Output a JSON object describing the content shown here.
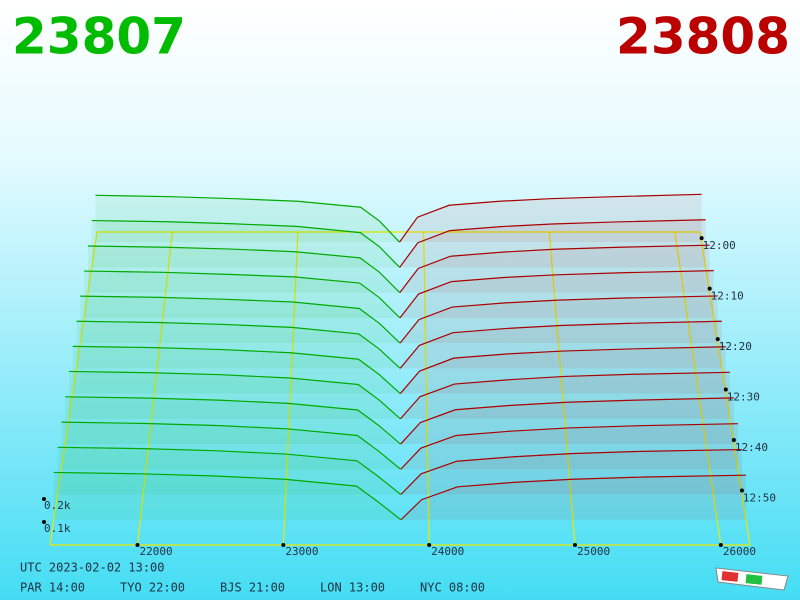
{
  "header": {
    "bid": "23807",
    "ask": "23808"
  },
  "chart_data": {
    "type": "depth3d",
    "bid_color": "#00aa00",
    "ask_color": "#aa0000",
    "grid_color": "#e8e800",
    "xlim": [
      21400,
      26200
    ],
    "xticks": [
      22000,
      23000,
      24000,
      25000,
      26000
    ],
    "tlim": [
      718,
      780
    ],
    "tticks": [
      {
        "value": 720,
        "label": "12:00"
      },
      {
        "value": 730,
        "label": "12:10"
      },
      {
        "value": 740,
        "label": "12:20"
      },
      {
        "value": 750,
        "label": "12:30"
      },
      {
        "value": 760,
        "label": "12:40"
      },
      {
        "value": 770,
        "label": "12:50"
      }
    ],
    "zticks": [
      {
        "value": 100,
        "label": "0.1k"
      },
      {
        "value": 200,
        "label": "0.2k"
      }
    ],
    "bid_prices": [
      21400,
      22000,
      22500,
      23000,
      23500,
      23650,
      23807
    ],
    "ask_prices": [
      23808,
      23950,
      24200,
      24600,
      25000,
      25500,
      26200
    ],
    "snapshots": [
      {
        "time": 720,
        "bids": [
          235,
          228,
          218,
          205,
          175,
          105,
          0
        ],
        "asks": [
          0,
          125,
          185,
          205,
          218,
          228,
          240
        ]
      },
      {
        "time": 725,
        "bids": [
          232,
          226,
          216,
          203,
          172,
          102,
          0
        ],
        "asks": [
          0,
          122,
          182,
          202,
          215,
          225,
          236
        ]
      },
      {
        "time": 730,
        "bids": [
          228,
          222,
          213,
          200,
          170,
          100,
          0
        ],
        "asks": [
          0,
          118,
          178,
          198,
          212,
          222,
          232
        ]
      },
      {
        "time": 735,
        "bids": [
          226,
          220,
          210,
          198,
          168,
          98,
          0
        ],
        "asks": [
          0,
          115,
          175,
          195,
          208,
          218,
          228
        ]
      },
      {
        "time": 740,
        "bids": [
          224,
          218,
          209,
          196,
          165,
          95,
          0
        ],
        "asks": [
          0,
          112,
          172,
          192,
          205,
          215,
          225
        ]
      },
      {
        "time": 745,
        "bids": [
          222,
          216,
          207,
          193,
          162,
          92,
          0
        ],
        "asks": [
          0,
          108,
          168,
          188,
          202,
          212,
          222
        ]
      },
      {
        "time": 750,
        "bids": [
          220,
          214,
          205,
          190,
          160,
          90,
          0
        ],
        "asks": [
          0,
          105,
          165,
          185,
          198,
          208,
          218
        ]
      },
      {
        "time": 755,
        "bids": [
          218,
          212,
          203,
          188,
          158,
          88,
          0
        ],
        "asks": [
          0,
          102,
          160,
          180,
          195,
          205,
          214
        ]
      },
      {
        "time": 760,
        "bids": [
          215,
          209,
          200,
          185,
          155,
          85,
          0
        ],
        "asks": [
          0,
          98,
          156,
          176,
          190,
          200,
          210
        ]
      },
      {
        "time": 765,
        "bids": [
          212,
          206,
          197,
          182,
          152,
          82,
          0
        ],
        "asks": [
          0,
          95,
          152,
          172,
          186,
          196,
          205
        ]
      },
      {
        "time": 770,
        "bids": [
          210,
          204,
          195,
          180,
          150,
          80,
          0
        ],
        "asks": [
          0,
          92,
          148,
          168,
          182,
          192,
          200
        ]
      },
      {
        "time": 775,
        "bids": [
          208,
          202,
          193,
          178,
          148,
          78,
          0
        ],
        "asks": [
          0,
          88,
          145,
          165,
          178,
          188,
          196
        ]
      }
    ]
  },
  "footer": {
    "utc": "UTC 2023-02-02 13:00",
    "cities": [
      "PAR 14:00",
      "TYO 22:00",
      "BJS 21:00",
      "LON 13:00",
      "NYC 08:00"
    ]
  }
}
